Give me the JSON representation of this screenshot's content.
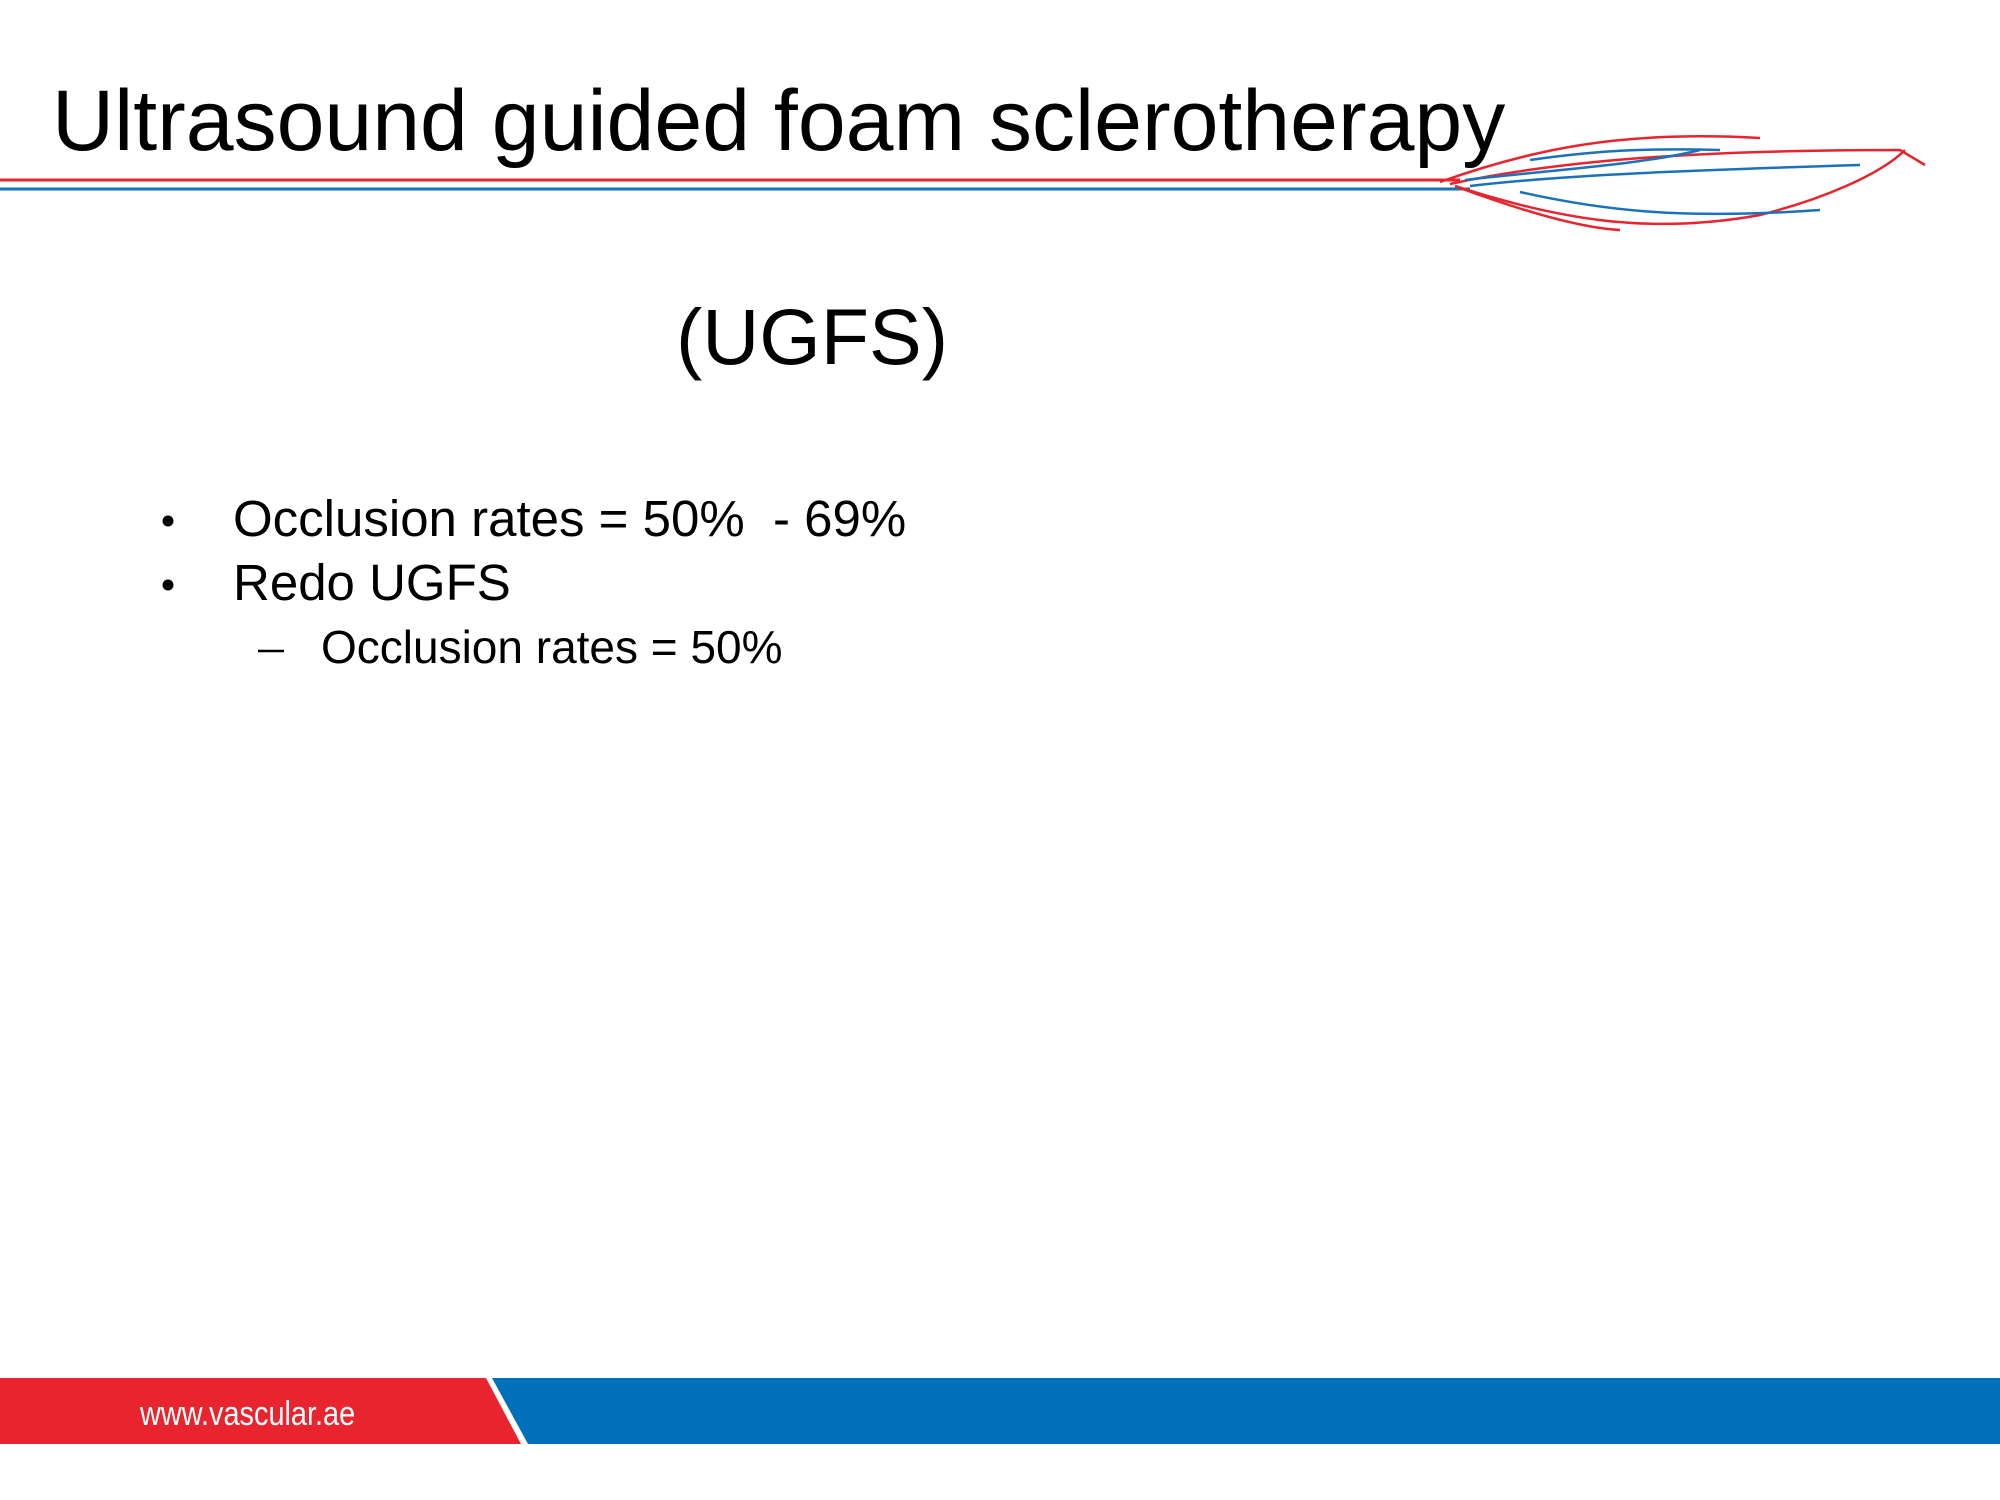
{
  "header": {
    "title": "Ultrasound guided foam sclerotherapy"
  },
  "subtitle": "(UGFS)",
  "bullets": [
    {
      "text": "Occlusion rates = 50%  - 69%"
    },
    {
      "text": "Redo UGFS",
      "sub": [
        "Occlusion rates = 50%"
      ]
    }
  ],
  "footer": {
    "url": "www.vascular.ae"
  }
}
